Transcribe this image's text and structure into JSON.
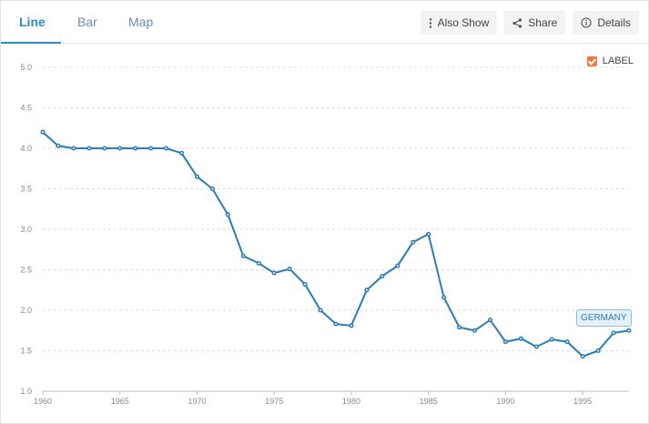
{
  "tabs": [
    {
      "label": "Line",
      "active": true
    },
    {
      "label": "Bar",
      "active": false
    },
    {
      "label": "Map",
      "active": false
    }
  ],
  "actions": {
    "also_show": "Also Show",
    "share": "Share",
    "details": "Details"
  },
  "legend": {
    "label": "LABEL",
    "checked": true,
    "checkbox_color": "#f07a3c"
  },
  "colors": {
    "accent": "#2a8ec7",
    "series": "#2a7cb5"
  },
  "chart_data": {
    "type": "line",
    "x": [
      1960,
      1961,
      1962,
      1963,
      1964,
      1965,
      1966,
      1967,
      1968,
      1969,
      1970,
      1971,
      1972,
      1973,
      1974,
      1975,
      1976,
      1977,
      1978,
      1979,
      1980,
      1981,
      1982,
      1983,
      1984,
      1985,
      1986,
      1987,
      1988,
      1989,
      1990,
      1991,
      1992,
      1993,
      1994,
      1995,
      1996,
      1997,
      1998
    ],
    "series": [
      {
        "name": "GERMANY",
        "values": [
          4.2,
          4.03,
          4.0,
          4.0,
          4.0,
          4.0,
          4.0,
          4.0,
          4.0,
          3.94,
          3.65,
          3.5,
          3.18,
          2.67,
          2.58,
          2.46,
          2.51,
          2.32,
          2.0,
          1.83,
          1.81,
          2.25,
          2.42,
          2.55,
          2.84,
          2.94,
          2.16,
          1.79,
          1.75,
          1.88,
          1.61,
          1.65,
          1.55,
          1.64,
          1.61,
          1.43,
          1.5,
          1.72,
          1.75
        ]
      }
    ],
    "x_ticks": [
      "1960",
      "1965",
      "1970",
      "1975",
      "1980",
      "1985",
      "1990",
      "1995"
    ],
    "y_ticks": [
      "1.0",
      "1.5",
      "2.0",
      "2.5",
      "3.0",
      "3.5",
      "4.0",
      "4.5",
      "5.0"
    ],
    "xlim": [
      1960,
      1998
    ],
    "ylim": [
      1.0,
      5.0
    ],
    "grid": true,
    "legend_position": "top-right"
  }
}
